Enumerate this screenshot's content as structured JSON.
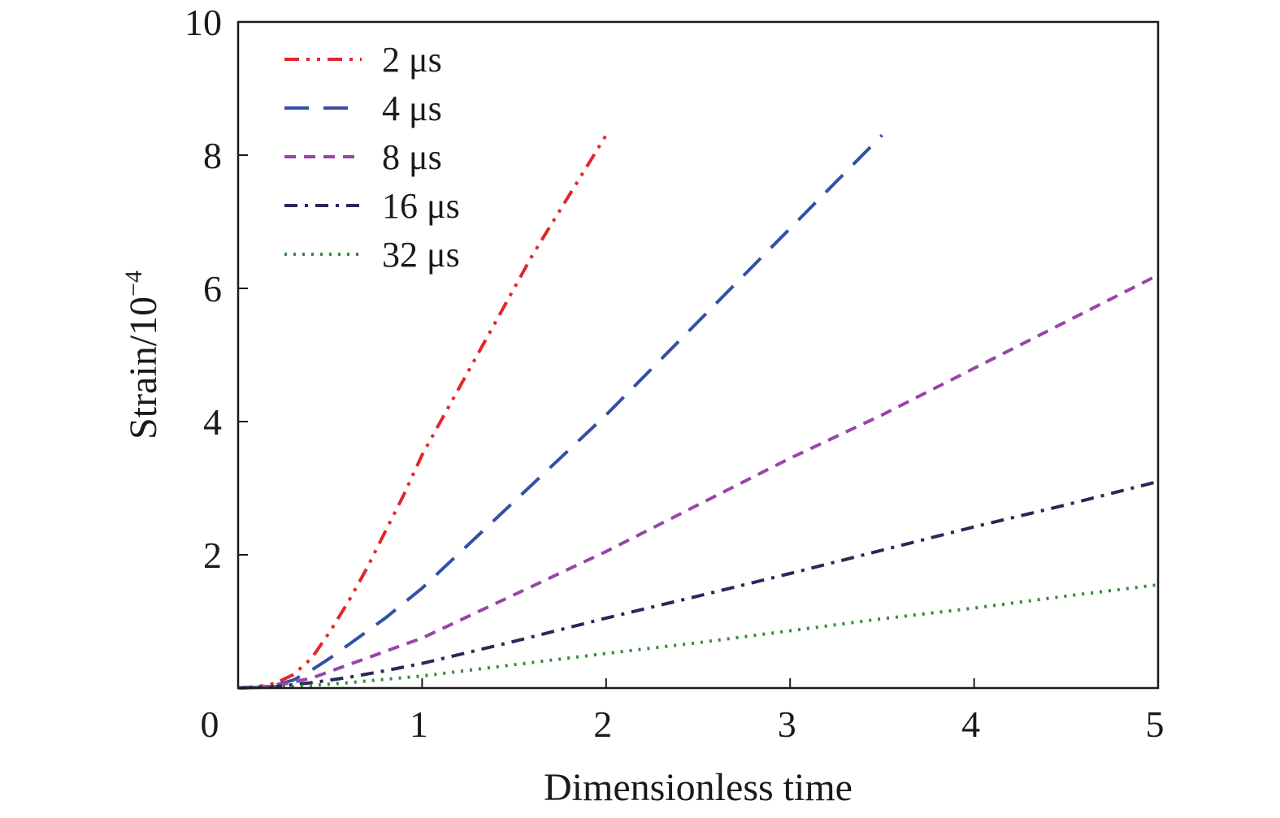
{
  "chart_data": {
    "type": "line",
    "xlabel": "Dimensionless time",
    "ylabel": "Strain/10",
    "ylabel_exponent": "−4",
    "xlim": [
      0,
      5
    ],
    "ylim": [
      0,
      10
    ],
    "x_ticks": [
      "0",
      "1",
      "2",
      "3",
      "4",
      "5"
    ],
    "y_ticks": [
      "2",
      "4",
      "6",
      "8",
      "10"
    ],
    "grid": false,
    "legend_position": "top-left",
    "series": [
      {
        "name": "2 μs",
        "color": "#e3262b",
        "dash": "dash-dot-dot",
        "x": [
          0,
          0.1,
          0.2,
          0.3,
          0.4,
          0.5,
          0.6,
          0.7,
          0.8,
          0.9,
          1.0,
          1.2,
          1.4,
          1.6,
          1.8,
          2.0
        ],
        "y": [
          0,
          0.02,
          0.07,
          0.2,
          0.45,
          0.85,
          1.3,
          1.8,
          2.35,
          2.9,
          3.5,
          4.5,
          5.5,
          6.5,
          7.4,
          8.3
        ]
      },
      {
        "name": "4 μs",
        "color": "#3450a5",
        "dash": "long-dash",
        "x": [
          0,
          0.1,
          0.2,
          0.3,
          0.4,
          0.5,
          0.6,
          0.8,
          1.0,
          1.5,
          2.0,
          2.5,
          3.0,
          3.5
        ],
        "y": [
          0,
          0.01,
          0.04,
          0.12,
          0.27,
          0.45,
          0.65,
          1.05,
          1.5,
          2.8,
          4.1,
          5.5,
          6.9,
          8.3
        ]
      },
      {
        "name": "8 μs",
        "color": "#9845a8",
        "dash": "dash",
        "x": [
          0,
          0.2,
          0.4,
          0.6,
          0.8,
          1.0,
          1.5,
          2.0,
          2.5,
          3.0,
          3.5,
          4.0,
          4.5,
          5.0
        ],
        "y": [
          0,
          0.03,
          0.15,
          0.35,
          0.55,
          0.75,
          1.4,
          2.05,
          2.75,
          3.45,
          4.1,
          4.8,
          5.5,
          6.2
        ]
      },
      {
        "name": "16 μs",
        "color": "#28285a",
        "dash": "dash-dot",
        "x": [
          0,
          0.2,
          0.4,
          0.6,
          0.8,
          1.0,
          1.5,
          2.0,
          2.5,
          3.0,
          3.5,
          4.0,
          4.5,
          5.0
        ],
        "y": [
          0,
          0.02,
          0.08,
          0.16,
          0.26,
          0.37,
          0.7,
          1.05,
          1.38,
          1.72,
          2.07,
          2.42,
          2.75,
          3.1
        ]
      },
      {
        "name": "32 μs",
        "color": "#3a8a3a",
        "dash": "dot",
        "x": [
          0,
          0.3,
          0.6,
          1.0,
          1.5,
          2.0,
          2.5,
          3.0,
          3.5,
          4.0,
          4.5,
          5.0
        ],
        "y": [
          0,
          0.02,
          0.08,
          0.18,
          0.35,
          0.52,
          0.68,
          0.86,
          1.04,
          1.2,
          1.38,
          1.55
        ]
      }
    ]
  }
}
